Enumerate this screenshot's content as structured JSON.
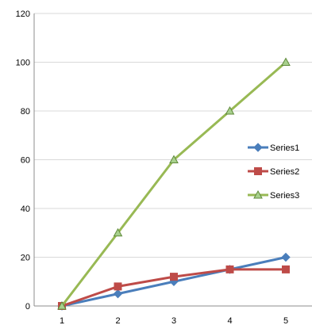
{
  "chart_data": {
    "type": "line",
    "title": "",
    "xlabel": "",
    "ylabel": "",
    "x": [
      1,
      2,
      3,
      4,
      5
    ],
    "ylim": [
      0,
      120
    ],
    "yticks": [
      0,
      20,
      40,
      60,
      80,
      100,
      120
    ],
    "grid": "horizontal",
    "legend_position": "right",
    "series": [
      {
        "name": "Series1",
        "values": [
          0,
          5,
          10,
          15,
          20
        ],
        "color": "#4a7ebb",
        "marker": "diamond"
      },
      {
        "name": "Series2",
        "values": [
          0,
          8,
          12,
          15,
          15
        ],
        "color": "#be4b48",
        "marker": "square"
      },
      {
        "name": "Series3",
        "values": [
          0,
          30,
          60,
          80,
          100
        ],
        "color": "#98b954",
        "marker": "triangle"
      }
    ]
  }
}
